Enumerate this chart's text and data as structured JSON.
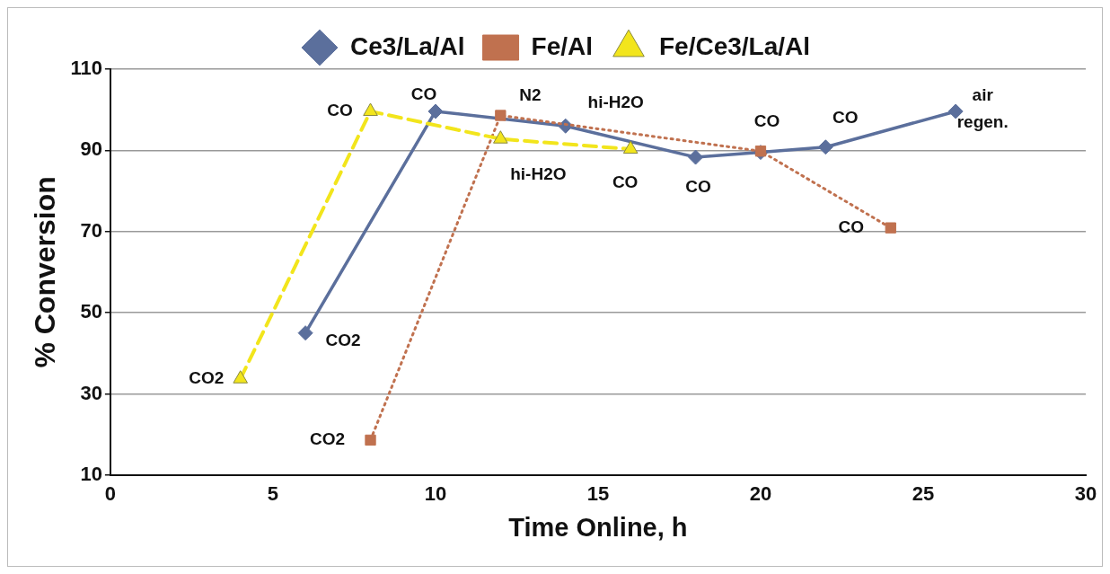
{
  "chart_data": {
    "type": "line",
    "xlabel": "Time Online, h",
    "ylabel": "% Conversion",
    "xlim": [
      0,
      30
    ],
    "xticks": [
      0,
      5,
      10,
      15,
      20,
      25,
      30
    ],
    "ylim": [
      10,
      110
    ],
    "yticks": [
      10,
      30,
      50,
      70,
      90,
      110
    ],
    "grid": "y",
    "legend": "top",
    "series": [
      {
        "name": "Ce3/La/Al",
        "color": "#5b6f9c",
        "marker": "diamond",
        "line_style": "solid",
        "x": [
          6,
          10,
          14,
          18,
          20,
          22,
          26
        ],
        "values": [
          45,
          99.6,
          96,
          88.3,
          89.5,
          90.8,
          99.6
        ]
      },
      {
        "name": "Fe/Al",
        "color": "#c0714f",
        "marker": "square",
        "line_style": "dotted",
        "x": [
          8,
          12,
          20,
          24
        ],
        "values": [
          18.6,
          98.6,
          89.8,
          70.9
        ]
      },
      {
        "name": "Fe/Ce3/La/Al",
        "color": "#f2e51c",
        "marker": "triangle",
        "line_style": "dashed",
        "x": [
          4,
          8,
          12,
          16
        ],
        "values": [
          33.7,
          99.6,
          92.8,
          90.3
        ]
      }
    ],
    "annotations": [
      {
        "text": "CO2",
        "x": 4,
        "y": 33.7
      },
      {
        "text": "CO",
        "x": 8,
        "y": 99.6
      },
      {
        "text": "CO",
        "x": 10,
        "y": 99.6
      },
      {
        "text": "CO2",
        "x": 6,
        "y": 45
      },
      {
        "text": "N2",
        "x": 12,
        "y": 98.6
      },
      {
        "text": "hi-H2O",
        "x": 14,
        "y": 96
      },
      {
        "text": "hi-H2O",
        "x": 12,
        "y": 92.8
      },
      {
        "text": "CO",
        "x": 16,
        "y": 90.3
      },
      {
        "text": "CO",
        "x": 18,
        "y": 88.3
      },
      {
        "text": "CO",
        "x": 20,
        "y": 89.8
      },
      {
        "text": "CO",
        "x": 22,
        "y": 90.8
      },
      {
        "text": "CO",
        "x": 24,
        "y": 70.9
      },
      {
        "text": "air\nregen.",
        "x": 26,
        "y": 99.6
      },
      {
        "text": "CO2",
        "x": 8,
        "y": 18.6
      }
    ]
  }
}
